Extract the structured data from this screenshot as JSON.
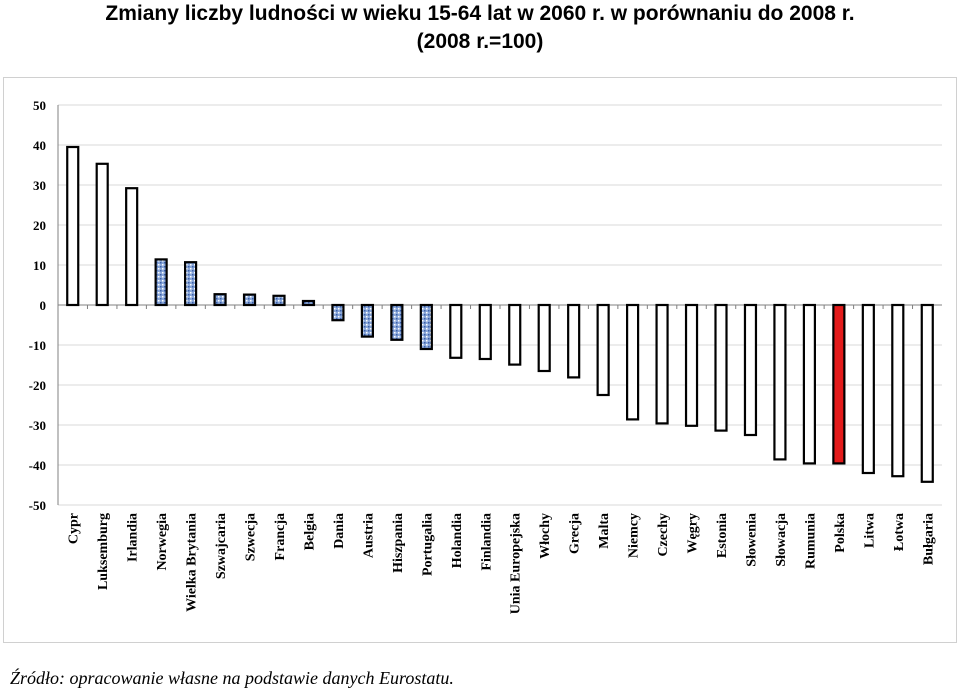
{
  "title_line1": "Zmiany liczby ludności w wieku 15-64 lat w 2060 r. w porównaniu do 2008 r.",
  "title_line2": "(2008 r.=100)",
  "source": "Źródło: opracowanie własne na podstawie danych Eurostatu.",
  "colors": {
    "bar_default_fill": "#ffffff",
    "bar_efta_fill": "#8aa7d9",
    "bar_highlight_fill": "#e31b1b",
    "bar_stroke": "#000000",
    "grid": "#d9d9d9"
  },
  "chart_data": {
    "type": "bar",
    "title": "",
    "xlabel": "",
    "ylabel": "",
    "ylim": [
      -50,
      50
    ],
    "yticks": [
      50,
      40,
      30,
      20,
      10,
      0,
      -10,
      -20,
      -30,
      -40,
      -50
    ],
    "grid": true,
    "categories": [
      "Cypr",
      "Luksemburg",
      "Irlandia",
      "Norwegia",
      "Wielka Brytania",
      "Szwajcaria",
      "Szwecja",
      "Francja",
      "Belgia",
      "Dania",
      "Austria",
      "Hiszpania",
      "Portugalia",
      "Holandia",
      "Finlandia",
      "Unia Europejska",
      "Włochy",
      "Grecja",
      "Malta",
      "Niemcy",
      "Czechy",
      "Węgry",
      "Estonia",
      "Słowenia",
      "Słowacja",
      "Rumunia",
      "Polska",
      "Litwa",
      "Łotwa",
      "Bułgaria"
    ],
    "values": [
      39.5,
      35.3,
      29.2,
      11.4,
      10.7,
      2.7,
      2.6,
      2.3,
      1.0,
      -3.8,
      -7.9,
      -8.7,
      -11.0,
      -13.2,
      -13.5,
      -14.9,
      -16.5,
      -18.1,
      -22.5,
      -28.6,
      -29.6,
      -30.2,
      -31.4,
      -32.5,
      -38.6,
      -39.6,
      -39.6,
      -42.0,
      -42.8,
      -44.2
    ],
    "styles": [
      "plain",
      "plain",
      "plain",
      "dotted",
      "dotted",
      "dotted",
      "dotted",
      "dotted",
      "dotted",
      "dotted",
      "dotted",
      "dotted",
      "dotted",
      "plain",
      "plain",
      "plain",
      "plain",
      "plain",
      "plain",
      "plain",
      "plain",
      "plain",
      "plain",
      "plain",
      "plain",
      "plain",
      "highlight",
      "plain",
      "plain",
      "plain"
    ]
  }
}
